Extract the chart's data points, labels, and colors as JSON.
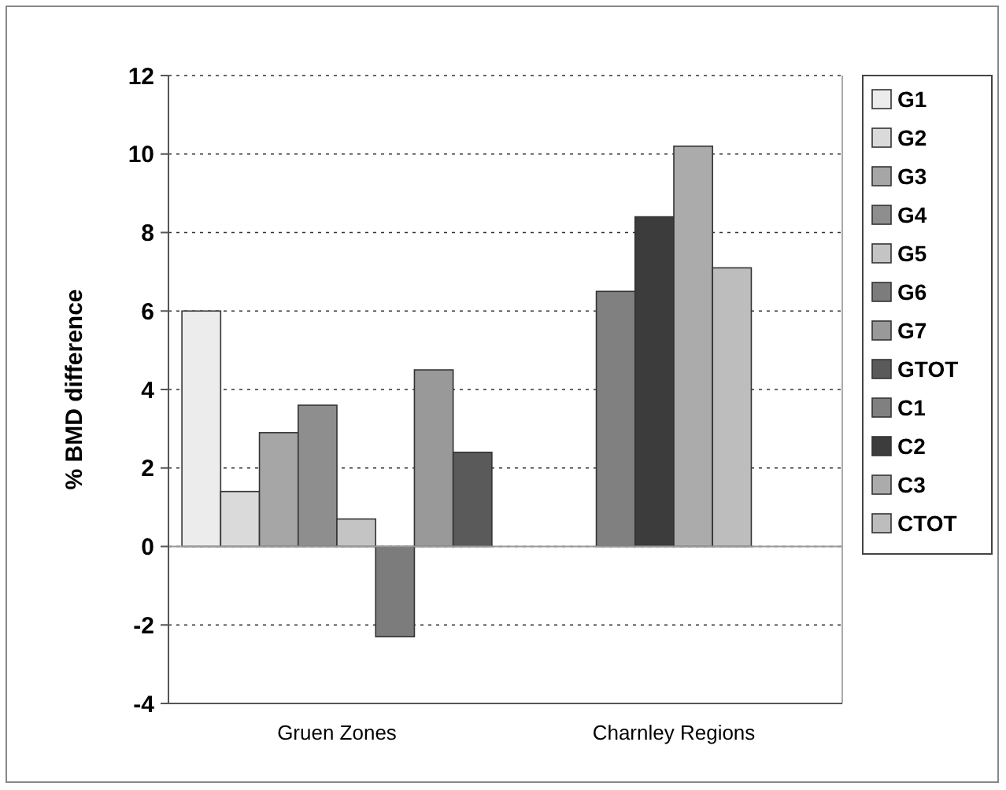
{
  "chart_data": {
    "type": "bar",
    "ylabel": "% BMD difference",
    "categories": [
      "Gruen Zones",
      "Charnley Regions"
    ],
    "series": [
      {
        "name": "G1",
        "color": "#ececec",
        "values": [
          6.0,
          null
        ]
      },
      {
        "name": "G2",
        "color": "#dadada",
        "values": [
          1.4,
          null
        ]
      },
      {
        "name": "G3",
        "color": "#a6a6a6",
        "values": [
          2.9,
          null
        ]
      },
      {
        "name": "G4",
        "color": "#8e8e8e",
        "values": [
          3.6,
          null
        ]
      },
      {
        "name": "G5",
        "color": "#c4c4c4",
        "values": [
          0.7,
          null
        ]
      },
      {
        "name": "G6",
        "color": "#7c7c7c",
        "values": [
          -2.3,
          null
        ]
      },
      {
        "name": "G7",
        "color": "#999999",
        "values": [
          4.5,
          null
        ]
      },
      {
        "name": "GTOT",
        "color": "#5a5a5a",
        "values": [
          2.4,
          null
        ]
      },
      {
        "name": "C1",
        "color": "#808080",
        "values": [
          null,
          6.5
        ]
      },
      {
        "name": "C2",
        "color": "#3c3c3c",
        "values": [
          null,
          8.4
        ]
      },
      {
        "name": "C3",
        "color": "#ababab",
        "values": [
          null,
          10.2
        ]
      },
      {
        "name": "CTOT",
        "color": "#bdbdbd",
        "values": [
          null,
          7.1
        ]
      }
    ],
    "ylim": [
      -4,
      12
    ],
    "yticks": [
      -4,
      -2,
      0,
      2,
      4,
      6,
      8,
      10,
      12
    ],
    "grid": "y",
    "legend": "right"
  }
}
